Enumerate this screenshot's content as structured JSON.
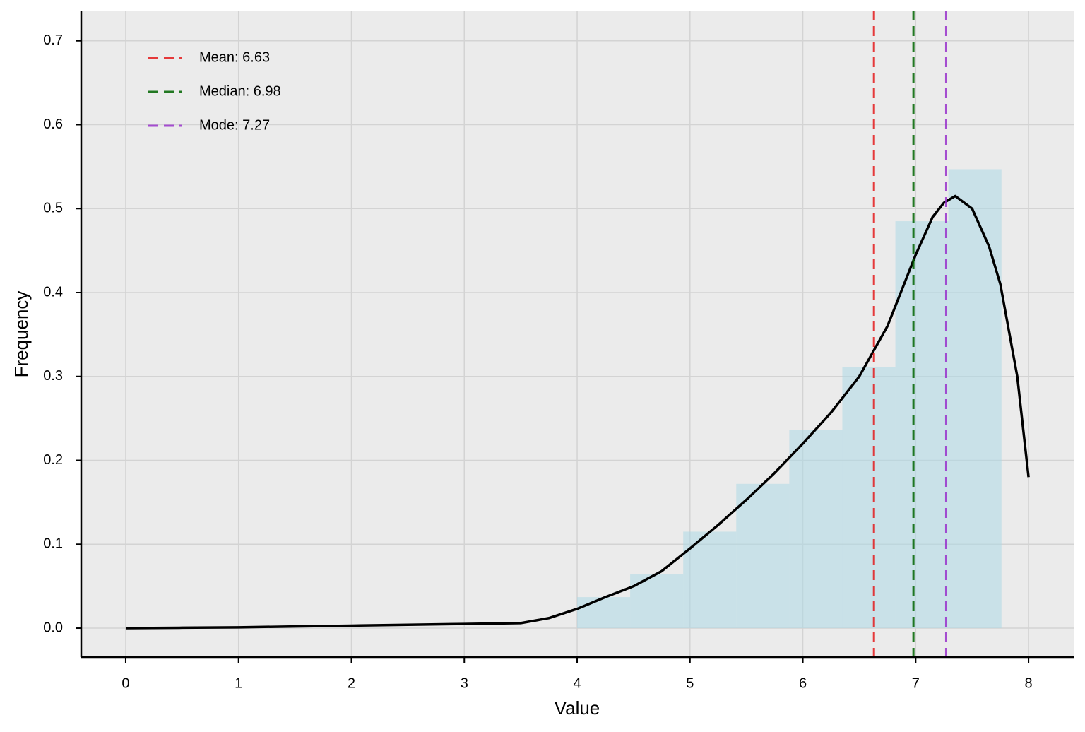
{
  "chart_data": {
    "type": "histogram",
    "x_label": "Value",
    "y_label": "Frequency",
    "bins": [
      4.0,
      4.47,
      4.94,
      5.41,
      5.88,
      6.35,
      6.82,
      7.29,
      7.76
    ],
    "values": [
      0.037,
      0.064,
      0.115,
      0.172,
      0.236,
      0.311,
      0.485,
      0.547
    ],
    "color": "#add8e6",
    "density": {
      "color": "#000000",
      "x": [
        0,
        0.5,
        1,
        1.5,
        2,
        2.5,
        3,
        3.5,
        3.75,
        4,
        4.25,
        4.5,
        4.75,
        5,
        5.25,
        5.5,
        5.75,
        6,
        6.25,
        6.5,
        6.75,
        7,
        7.15,
        7.25,
        7.35,
        7.5,
        7.65,
        7.75,
        7.9,
        8
      ],
      "values": [
        0,
        0.0005,
        0.001,
        0.002,
        0.003,
        0.004,
        0.005,
        0.006,
        0.012,
        0.023,
        0.037,
        0.05,
        0.068,
        0.095,
        0.123,
        0.153,
        0.185,
        0.22,
        0.257,
        0.3,
        0.36,
        0.445,
        0.49,
        0.507,
        0.515,
        0.5,
        0.455,
        0.41,
        0.3,
        0.18
      ]
    },
    "vlines": [
      {
        "label": "Mean: 6.63",
        "value": 6.63,
        "color": "#e41a1c"
      },
      {
        "label": "Median: 6.98",
        "value": 6.98,
        "color": "#006400"
      },
      {
        "label": "Mode: 7.27",
        "value": 7.27,
        "color": "#9932cc"
      }
    ],
    "xlim": [
      -0.394,
      8.4
    ],
    "ylim": [
      -0.0345,
      0.736
    ],
    "xticks": [
      0,
      1,
      2,
      3,
      4,
      5,
      6,
      7,
      8
    ],
    "yticks": [
      {
        "value": 0,
        "label": "0.0"
      },
      0.1,
      0.2,
      0.3,
      0.4,
      0.5,
      0.6,
      0.7
    ],
    "grid": true,
    "legend": "upper left"
  }
}
